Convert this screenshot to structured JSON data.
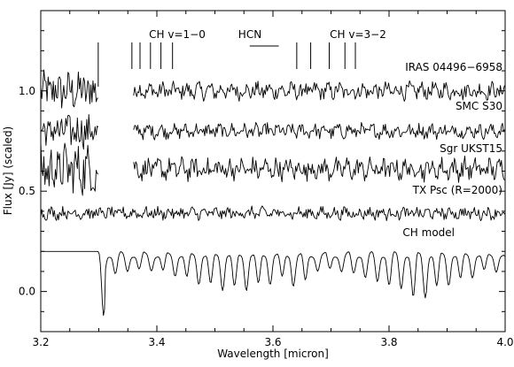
{
  "chart_data": {
    "type": "line",
    "title": "",
    "xlabel": "Wavelength [micron]",
    "ylabel": "Flux [Jy] (scaled)",
    "xlim": [
      3.2,
      4.0
    ],
    "ylim": [
      -0.2,
      1.4
    ],
    "xticks": [
      3.2,
      3.4,
      3.6,
      3.8,
      4.0
    ],
    "xtick_labels": [
      "3.2",
      "3.4",
      "3.6",
      "3.8",
      "4.0"
    ],
    "yticks": [
      0.0,
      0.5,
      1.0
    ],
    "ytick_labels": [
      "0.0",
      "0.5",
      "1.0"
    ],
    "grid": false,
    "legend": "none",
    "annotations": {
      "ch_v10_label": "CH v=1−0",
      "hcn_label": "HCN",
      "ch_v32_label": "CH v=3−2",
      "ch_v10_lines": [
        3.299,
        3.357,
        3.371,
        3.389,
        3.407,
        3.427
      ],
      "ch_v32_lines": [
        3.641,
        3.665,
        3.697,
        3.724,
        3.742
      ],
      "hcn_range": [
        3.56,
        3.61
      ]
    },
    "series": [
      {
        "name": "IRAS 04496−6958",
        "offset": 1.0,
        "noise": 0.035,
        "segments": [
          [
            3.2,
            3.3
          ],
          [
            3.36,
            4.0
          ]
        ]
      },
      {
        "name": "SMC S30",
        "offset": 0.8,
        "noise": 0.03,
        "segments": [
          [
            3.2,
            3.3
          ],
          [
            3.36,
            4.0
          ]
        ]
      },
      {
        "name": "Sgr UKST15",
        "offset": 0.61,
        "noise": 0.045,
        "segments": [
          [
            3.2,
            3.3
          ],
          [
            3.36,
            4.0
          ]
        ]
      },
      {
        "name": "TX Psc (R=2000)",
        "offset": 0.39,
        "noise": 0.025,
        "segments": [
          [
            3.2,
            4.0
          ]
        ]
      },
      {
        "name": "CH model",
        "offset": 0.2,
        "noise": 0.0,
        "segments": [
          [
            3.2,
            4.0
          ]
        ]
      }
    ]
  }
}
